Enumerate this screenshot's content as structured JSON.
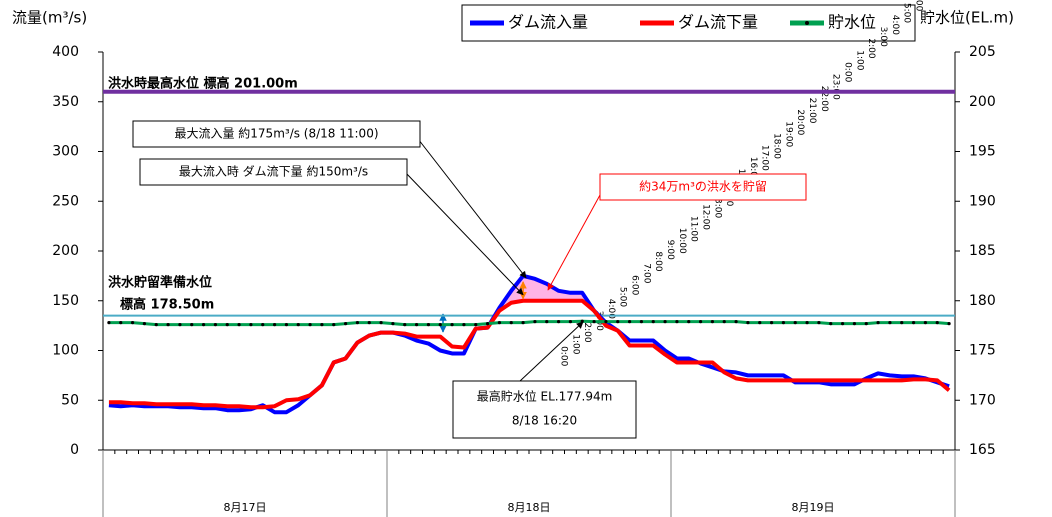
{
  "chart_data": {
    "type": "line",
    "y_label": "流量(m³/s)",
    "y2_label": "貯水位(EL.m)",
    "categories": [
      "0:00",
      "1:00",
      "2:00",
      "3:00",
      "4:00",
      "5:00",
      "6:00",
      "7:00",
      "8:00",
      "9:00",
      "10:00",
      "11:00",
      "12:00",
      "13:00",
      "14:00",
      "15:00",
      "16:00",
      "17:00",
      "18:00",
      "19:00",
      "20:00",
      "21:00",
      "22:00",
      "23:00",
      "0:00",
      "1:00",
      "2:00",
      "3:00",
      "4:00",
      "5:00",
      "6:00",
      "7:00",
      "8:00",
      "9:00",
      "10:00",
      "11:00",
      "12:00",
      "13:00",
      "14:00",
      "15:00",
      "16:00",
      "17:00",
      "18:00",
      "19:00",
      "20:00",
      "21:00",
      "22:00",
      "23:00",
      "0:00",
      "1:00",
      "2:00",
      "3:00",
      "4:00",
      "5:00",
      "6:00",
      "7:00",
      "8:00",
      "9:00",
      "10:00",
      "11:00",
      "12:00",
      "13:00",
      "14:00",
      "15:00",
      "16:00",
      "17:00",
      "18:00",
      "19:00",
      "20:00",
      "21:00",
      "22:00",
      "23:00"
    ],
    "dates": [
      "8月17日",
      "8月18日",
      "8月19日"
    ],
    "series": [
      {
        "name": "ダム流入量",
        "color": "#0000ff",
        "values": [
          45,
          44,
          45,
          44,
          44,
          44,
          43,
          43,
          42,
          42,
          40,
          40,
          41,
          45,
          38,
          38,
          45,
          55,
          65,
          88,
          92,
          108,
          115,
          118,
          118,
          115,
          110,
          107,
          100,
          97,
          97,
          122,
          123,
          143,
          160,
          175,
          172,
          167,
          160,
          158,
          158,
          140,
          128,
          120,
          110,
          110,
          110,
          100,
          92,
          92,
          87,
          83,
          79,
          78,
          75,
          75,
          75,
          75,
          68,
          68,
          68,
          66,
          66,
          66,
          72,
          77,
          75,
          74,
          74,
          72,
          68,
          64
        ]
      },
      {
        "name": "ダム流下量",
        "color": "#ff0000",
        "values": [
          48,
          48,
          47,
          47,
          46,
          46,
          46,
          46,
          45,
          45,
          44,
          44,
          43,
          43,
          44,
          50,
          51,
          55,
          65,
          88,
          92,
          108,
          115,
          118,
          118,
          117,
          114,
          114,
          114,
          104,
          103,
          122,
          123,
          140,
          148,
          150,
          150,
          150,
          150,
          150,
          150,
          140,
          125,
          120,
          105,
          105,
          105,
          96,
          88,
          88,
          88,
          88,
          78,
          72,
          70,
          70,
          70,
          70,
          70,
          70,
          70,
          70,
          70,
          70,
          70,
          70,
          70,
          70,
          71,
          71,
          70,
          60
        ]
      },
      {
        "name": "貯水位",
        "color": "#00a050",
        "axis": "y2",
        "marker": "#000000",
        "values": [
          177.8,
          177.8,
          177.8,
          177.7,
          177.6,
          177.6,
          177.6,
          177.6,
          177.6,
          177.6,
          177.6,
          177.6,
          177.6,
          177.6,
          177.6,
          177.6,
          177.6,
          177.6,
          177.6,
          177.6,
          177.7,
          177.8,
          177.8,
          177.8,
          177.7,
          177.6,
          177.6,
          177.6,
          177.6,
          177.6,
          177.6,
          177.6,
          177.7,
          177.8,
          177.8,
          177.8,
          177.9,
          177.9,
          177.9,
          177.9,
          177.94,
          177.9,
          177.9,
          177.9,
          177.9,
          177.9,
          177.9,
          177.9,
          177.9,
          177.9,
          177.9,
          177.9,
          177.9,
          177.9,
          177.8,
          177.8,
          177.8,
          177.8,
          177.8,
          177.8,
          177.8,
          177.7,
          177.7,
          177.7,
          177.7,
          177.8,
          177.8,
          177.8,
          177.8,
          177.8,
          177.8,
          177.7
        ]
      }
    ],
    "ylim": [
      0,
      400
    ],
    "yticks": [
      0,
      50,
      100,
      150,
      200,
      250,
      300,
      350,
      400
    ],
    "y2lim": [
      165,
      205
    ],
    "y2ticks": [
      165,
      170,
      175,
      180,
      185,
      190,
      195,
      200,
      205
    ],
    "reference_lines": [
      {
        "value": 201,
        "axis": "y2",
        "color": "#7030a0",
        "labels": [
          "洪水時最高水位 標高 201.00m"
        ]
      },
      {
        "value": 178.5,
        "axis": "y2",
        "color": "#4bacc6",
        "labels": [
          "洪水貯留準備水位",
          "標高 178.50m"
        ]
      }
    ],
    "annotations": [
      {
        "lines": [
          "最大流入量 約175m³/s (8/18 11:00)"
        ]
      },
      {
        "lines": [
          "最大流入時 ダム流下量 約150m³/s"
        ]
      },
      {
        "lines": [
          "約34万m³の洪水を貯留"
        ],
        "color": "#ff0000"
      },
      {
        "lines": [
          "最高貯水位 EL.177.94m",
          "8/18 16:20"
        ]
      }
    ]
  }
}
